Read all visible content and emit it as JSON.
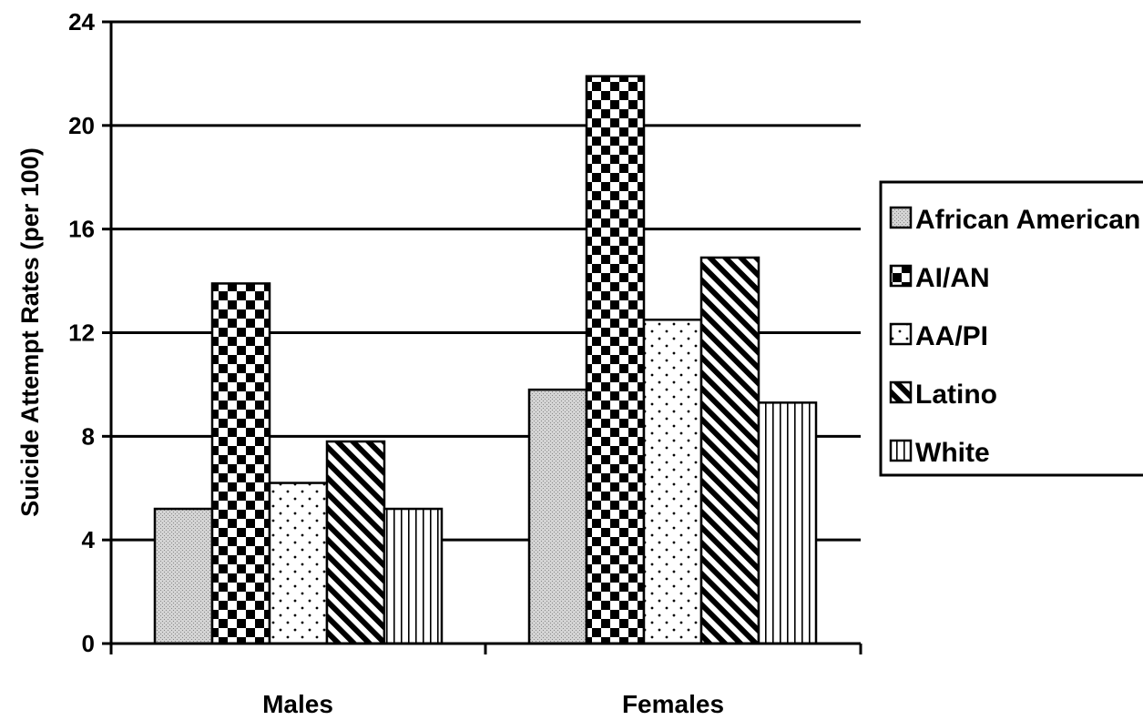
{
  "chart_data": {
    "type": "bar",
    "ylabel": "Suicide Attempt Rates (per 100)",
    "xlabel": "",
    "title": "",
    "ylim": [
      0,
      24
    ],
    "yticks": [
      0,
      4,
      8,
      12,
      16,
      20,
      24
    ],
    "categories": [
      "Males",
      "Females"
    ],
    "series": [
      {
        "name": "African American",
        "values": [
          5.2,
          9.8
        ],
        "pattern": "fine-dots"
      },
      {
        "name": "AI/AN",
        "values": [
          13.9,
          21.9
        ],
        "pattern": "checker"
      },
      {
        "name": "AA/PI",
        "values": [
          6.2,
          12.5
        ],
        "pattern": "sparse-dots"
      },
      {
        "name": "Latino",
        "values": [
          7.8,
          14.9
        ],
        "pattern": "diagonal"
      },
      {
        "name": "White",
        "values": [
          5.2,
          9.3
        ],
        "pattern": "vertical"
      }
    ],
    "grid": true,
    "legend_position": "right"
  }
}
